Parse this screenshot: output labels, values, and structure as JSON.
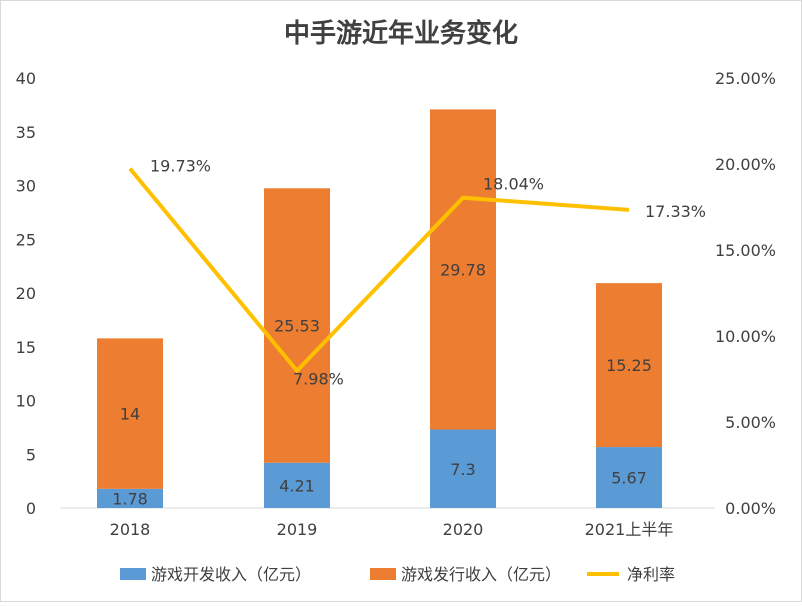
{
  "chart_data": {
    "type": "bar",
    "stacked": true,
    "title": "中手游近年业务变化",
    "categories": [
      "2018",
      "2019",
      "2020",
      "2021上半年"
    ],
    "series": [
      {
        "name": "游戏开发收入（亿元）",
        "type": "bar",
        "axis": "left",
        "color": "#5B9BD5",
        "values": [
          1.78,
          4.21,
          7.3,
          5.67
        ],
        "labels": [
          "1.78",
          "4.21",
          "7.3",
          "5.67"
        ]
      },
      {
        "name": "游戏发行收入（亿元）",
        "type": "bar",
        "axis": "left",
        "color": "#ED7D31",
        "values": [
          14,
          25.53,
          29.78,
          15.25
        ],
        "labels": [
          "14",
          "25.53",
          "29.78",
          "15.25"
        ]
      },
      {
        "name": "净利率",
        "type": "line",
        "axis": "right",
        "color": "#FFC000",
        "values": [
          19.73,
          7.98,
          18.04,
          17.33
        ],
        "labels": [
          "19.73%",
          "7.98%",
          "18.04%",
          "17.33%"
        ]
      }
    ],
    "left_axis": {
      "min": 0,
      "max": 40,
      "ticks": [
        "0",
        "5",
        "10",
        "15",
        "20",
        "25",
        "30",
        "35",
        "40"
      ]
    },
    "right_axis": {
      "min": 0,
      "max": 25,
      "ticks": [
        "0.00%",
        "5.00%",
        "10.00%",
        "15.00%",
        "20.00%",
        "25.00%"
      ]
    },
    "legend_position": "bottom"
  }
}
